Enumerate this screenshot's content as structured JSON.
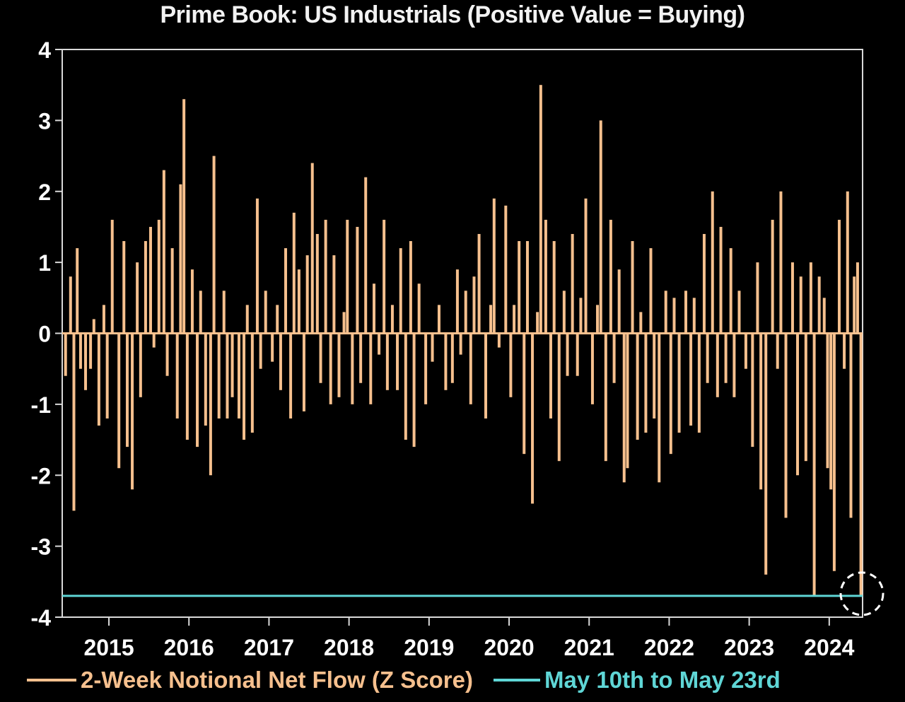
{
  "chart_data": {
    "type": "bar",
    "title": "Prime Book: US Industrials (Positive Value = Buying)",
    "ylim": [
      -4,
      4
    ],
    "yticks": [
      "4",
      "3",
      "2",
      "1",
      "0",
      "-1",
      "-2",
      "-3",
      "-4"
    ],
    "xticks": [
      "2015",
      "2016",
      "2017",
      "2018",
      "2019",
      "2020",
      "2021",
      "2022",
      "2023",
      "2024"
    ],
    "xlim": [
      "2014-06",
      "2024-06"
    ],
    "grid": false,
    "legend_position": "bottom",
    "series": [
      {
        "name": "2-Week Notional Net Flow (Z Score)",
        "color": "#f6c08e",
        "points": [
          [
            "2014-06",
            -0.6
          ],
          [
            "2014-07",
            0.8
          ],
          [
            "2014-07",
            -2.5
          ],
          [
            "2014-08",
            1.2
          ],
          [
            "2014-08",
            -0.5
          ],
          [
            "2014-09",
            -0.8
          ],
          [
            "2014-10",
            -0.5
          ],
          [
            "2014-10",
            0.2
          ],
          [
            "2014-11",
            -1.3
          ],
          [
            "2014-12",
            0.4
          ],
          [
            "2014-12",
            -1.2
          ],
          [
            "2015-01",
            1.6
          ],
          [
            "2015-02",
            -1.9
          ],
          [
            "2015-03",
            1.3
          ],
          [
            "2015-03",
            -1.6
          ],
          [
            "2015-04",
            -2.2
          ],
          [
            "2015-05",
            1.0
          ],
          [
            "2015-05",
            -0.9
          ],
          [
            "2015-06",
            1.3
          ],
          [
            "2015-07",
            1.5
          ],
          [
            "2015-07",
            -0.2
          ],
          [
            "2015-08",
            1.6
          ],
          [
            "2015-09",
            2.3
          ],
          [
            "2015-09",
            -0.6
          ],
          [
            "2015-10",
            1.2
          ],
          [
            "2015-11",
            -1.2
          ],
          [
            "2015-11",
            2.1
          ],
          [
            "2015-12",
            3.3
          ],
          [
            "2015-12",
            -1.5
          ],
          [
            "2016-01",
            0.9
          ],
          [
            "2016-02",
            -1.6
          ],
          [
            "2016-02",
            0.6
          ],
          [
            "2016-03",
            -1.3
          ],
          [
            "2016-04",
            -2.0
          ],
          [
            "2016-04",
            2.5
          ],
          [
            "2016-05",
            -1.2
          ],
          [
            "2016-06",
            0.6
          ],
          [
            "2016-06",
            -1.2
          ],
          [
            "2016-07",
            -0.9
          ],
          [
            "2016-08",
            -1.2
          ],
          [
            "2016-09",
            -1.5
          ],
          [
            "2016-09",
            0.4
          ],
          [
            "2016-10",
            -1.4
          ],
          [
            "2016-11",
            1.9
          ],
          [
            "2016-11",
            -0.5
          ],
          [
            "2016-12",
            0.6
          ],
          [
            "2017-01",
            -0.4
          ],
          [
            "2017-02",
            0.4
          ],
          [
            "2017-02",
            -0.8
          ],
          [
            "2017-03",
            1.2
          ],
          [
            "2017-04",
            -1.2
          ],
          [
            "2017-04",
            1.7
          ],
          [
            "2017-05",
            0.9
          ],
          [
            "2017-06",
            -1.1
          ],
          [
            "2017-06",
            1.1
          ],
          [
            "2017-07",
            2.4
          ],
          [
            "2017-08",
            1.4
          ],
          [
            "2017-08",
            -0.7
          ],
          [
            "2017-09",
            1.6
          ],
          [
            "2017-10",
            -1.0
          ],
          [
            "2017-10",
            1.1
          ],
          [
            "2017-11",
            -0.9
          ],
          [
            "2017-12",
            0.3
          ],
          [
            "2017-12",
            1.6
          ],
          [
            "2018-01",
            -1.0
          ],
          [
            "2018-02",
            1.5
          ],
          [
            "2018-02",
            -0.7
          ],
          [
            "2018-03",
            2.2
          ],
          [
            "2018-04",
            -1.0
          ],
          [
            "2018-04",
            0.7
          ],
          [
            "2018-05",
            -0.3
          ],
          [
            "2018-06",
            1.6
          ],
          [
            "2018-06",
            -0.8
          ],
          [
            "2018-07",
            0.4
          ],
          [
            "2018-08",
            -0.8
          ],
          [
            "2018-08",
            1.2
          ],
          [
            "2018-09",
            -1.5
          ],
          [
            "2018-10",
            1.3
          ],
          [
            "2018-10",
            -1.6
          ],
          [
            "2018-11",
            0.7
          ],
          [
            "2018-12",
            -1.0
          ],
          [
            "2019-01",
            -0.4
          ],
          [
            "2019-02",
            0.4
          ],
          [
            "2019-03",
            -0.8
          ],
          [
            "2019-04",
            -0.7
          ],
          [
            "2019-05",
            0.9
          ],
          [
            "2019-05",
            -0.3
          ],
          [
            "2019-06",
            0.6
          ],
          [
            "2019-07",
            -1.0
          ],
          [
            "2019-07",
            0.8
          ],
          [
            "2019-08",
            1.4
          ],
          [
            "2019-09",
            -1.2
          ],
          [
            "2019-10",
            0.4
          ],
          [
            "2019-10",
            1.9
          ],
          [
            "2019-11",
            -0.2
          ],
          [
            "2019-12",
            1.8
          ],
          [
            "2020-01",
            -0.9
          ],
          [
            "2020-01",
            0.4
          ],
          [
            "2020-02",
            1.3
          ],
          [
            "2020-03",
            -1.7
          ],
          [
            "2020-03",
            1.3
          ],
          [
            "2020-04",
            -2.4
          ],
          [
            "2020-05",
            0.3
          ],
          [
            "2020-05",
            3.5
          ],
          [
            "2020-06",
            1.6
          ],
          [
            "2020-07",
            -1.2
          ],
          [
            "2020-07",
            1.3
          ],
          [
            "2020-08",
            -1.8
          ],
          [
            "2020-09",
            0.6
          ],
          [
            "2020-09",
            -0.6
          ],
          [
            "2020-10",
            1.4
          ],
          [
            "2020-11",
            -0.6
          ],
          [
            "2020-11",
            0.5
          ],
          [
            "2020-12",
            1.9
          ],
          [
            "2021-01",
            -1.0
          ],
          [
            "2021-02",
            0.4
          ],
          [
            "2021-02",
            3.0
          ],
          [
            "2021-03",
            -1.8
          ],
          [
            "2021-04",
            1.6
          ],
          [
            "2021-04",
            -0.7
          ],
          [
            "2021-05",
            0.9
          ],
          [
            "2021-06",
            -2.1
          ],
          [
            "2021-06",
            -1.9
          ],
          [
            "2021-07",
            1.3
          ],
          [
            "2021-08",
            -1.5
          ],
          [
            "2021-08",
            0.3
          ],
          [
            "2021-09",
            -1.4
          ],
          [
            "2021-10",
            1.2
          ],
          [
            "2021-10",
            -1.2
          ],
          [
            "2021-11",
            -2.1
          ],
          [
            "2021-12",
            0.6
          ],
          [
            "2022-01",
            -1.7
          ],
          [
            "2022-01",
            0.5
          ],
          [
            "2022-02",
            -1.4
          ],
          [
            "2022-03",
            0.6
          ],
          [
            "2022-04",
            -1.3
          ],
          [
            "2022-04",
            0.5
          ],
          [
            "2022-05",
            -1.4
          ],
          [
            "2022-06",
            1.4
          ],
          [
            "2022-06",
            -0.7
          ],
          [
            "2022-07",
            2.0
          ],
          [
            "2022-08",
            -0.9
          ],
          [
            "2022-08",
            1.5
          ],
          [
            "2022-09",
            -0.7
          ],
          [
            "2022-10",
            1.2
          ],
          [
            "2022-10",
            -0.9
          ],
          [
            "2022-11",
            0.6
          ],
          [
            "2022-12",
            -0.5
          ],
          [
            "2023-01",
            -1.6
          ],
          [
            "2023-02",
            1.0
          ],
          [
            "2023-02",
            -2.2
          ],
          [
            "2023-03",
            -3.4
          ],
          [
            "2023-04",
            1.6
          ],
          [
            "2023-05",
            -0.5
          ],
          [
            "2023-05",
            2.0
          ],
          [
            "2023-06",
            -2.6
          ],
          [
            "2023-07",
            1.0
          ],
          [
            "2023-08",
            -2.0
          ],
          [
            "2023-08",
            0.8
          ],
          [
            "2023-09",
            -1.8
          ],
          [
            "2023-10",
            1.0
          ],
          [
            "2023-10",
            -3.7
          ],
          [
            "2023-11",
            0.8
          ],
          [
            "2023-12",
            0.5
          ],
          [
            "2023-12",
            -1.9
          ],
          [
            "2024-01",
            -2.2
          ],
          [
            "2024-01",
            -3.35
          ],
          [
            "2024-02",
            1.6
          ],
          [
            "2024-03",
            -0.5
          ],
          [
            "2024-03",
            2.0
          ],
          [
            "2024-04",
            -2.6
          ],
          [
            "2024-04",
            0.8
          ],
          [
            "2024-05",
            1.0
          ],
          [
            "2024-05",
            -3.7
          ]
        ]
      },
      {
        "name": "May 10th to May 23rd",
        "color": "#5fd6d6",
        "type": "hline",
        "value": -3.7
      }
    ],
    "annotation": {
      "type": "dashed-circle",
      "x": "2024-05",
      "y": -3.7
    }
  }
}
